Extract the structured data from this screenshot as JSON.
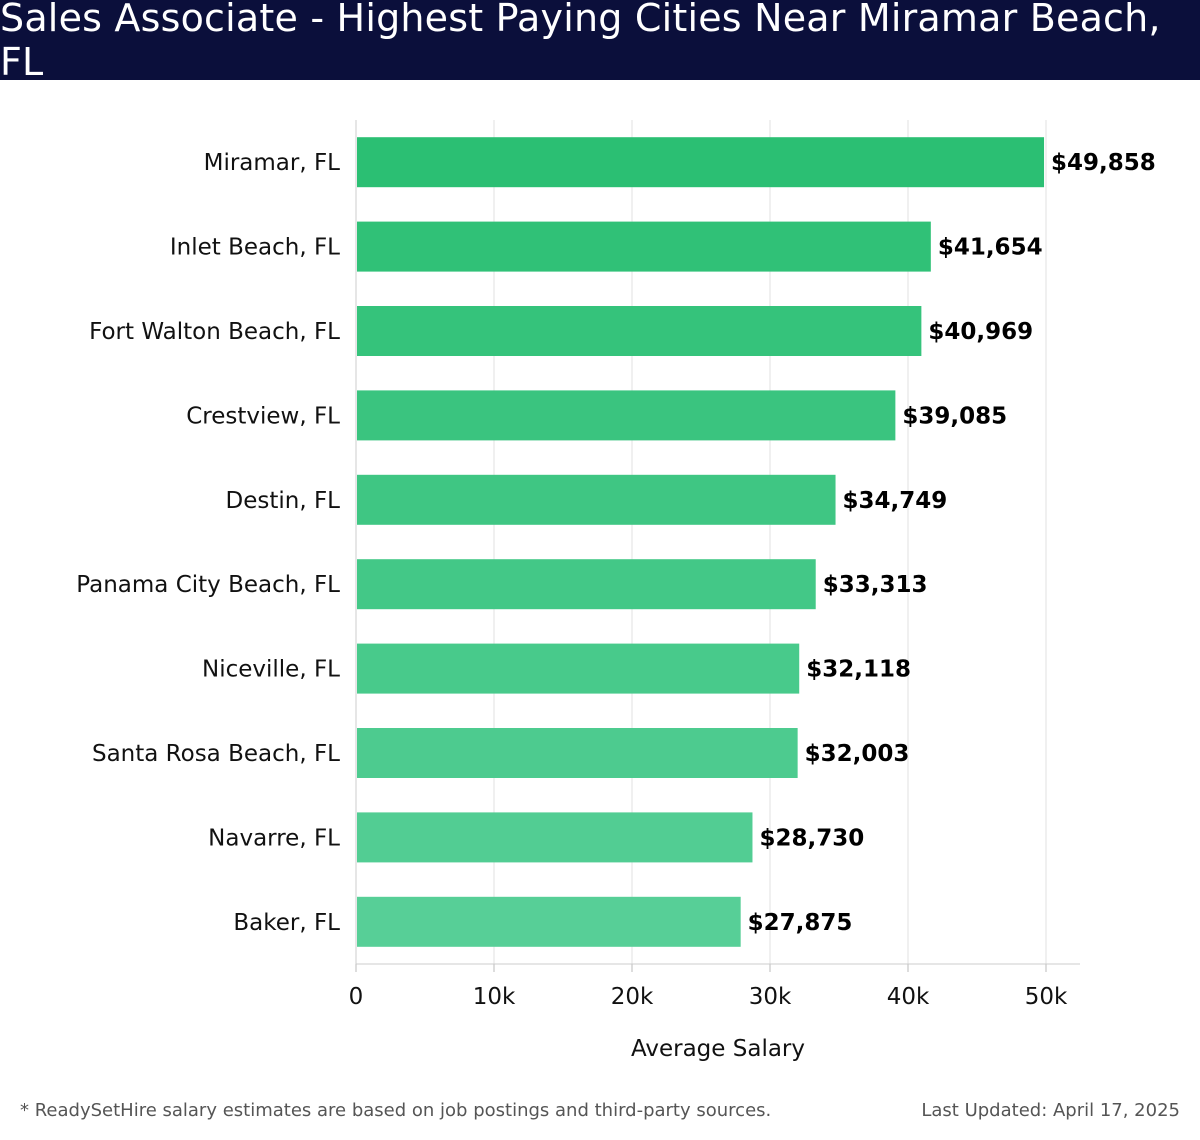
{
  "header": {
    "title": "Sales Associate - Highest Paying Cities Near Miramar Beach, FL"
  },
  "footer": {
    "note": "* ReadySetHire salary estimates are based on job postings and third-party sources.",
    "updated": "Last Updated: April 17, 2025"
  },
  "colors": {
    "header_bg": "#0b0f3b",
    "bar_top": "#2bbf73",
    "bar_bottom": "#57cf97",
    "grid": "#e2e2e2"
  },
  "chart_data": {
    "type": "bar",
    "orientation": "horizontal",
    "title": "Sales Associate - Highest Paying Cities Near Miramar Beach, FL",
    "xlabel": "Average Salary",
    "ylabel": "",
    "categories": [
      "Miramar, FL",
      "Inlet Beach, FL",
      "Fort Walton Beach, FL",
      "Crestview, FL",
      "Destin, FL",
      "Panama City Beach, FL",
      "Niceville, FL",
      "Santa Rosa Beach, FL",
      "Navarre, FL",
      "Baker, FL"
    ],
    "values": [
      49858,
      41654,
      40969,
      39085,
      34749,
      33313,
      32118,
      32003,
      28730,
      27875
    ],
    "data_labels": [
      "$49,858",
      "$41,654",
      "$40,969",
      "$39,085",
      "$34,749",
      "$33,313",
      "$32,118",
      "$32,003",
      "$28,730",
      "$27,875"
    ],
    "xticks": [
      0,
      10000,
      20000,
      30000,
      40000,
      50000
    ],
    "xtick_labels": [
      "0",
      "10k",
      "20k",
      "30k",
      "40k",
      "50k"
    ],
    "xlim": [
      0,
      52500
    ],
    "grid": true
  }
}
